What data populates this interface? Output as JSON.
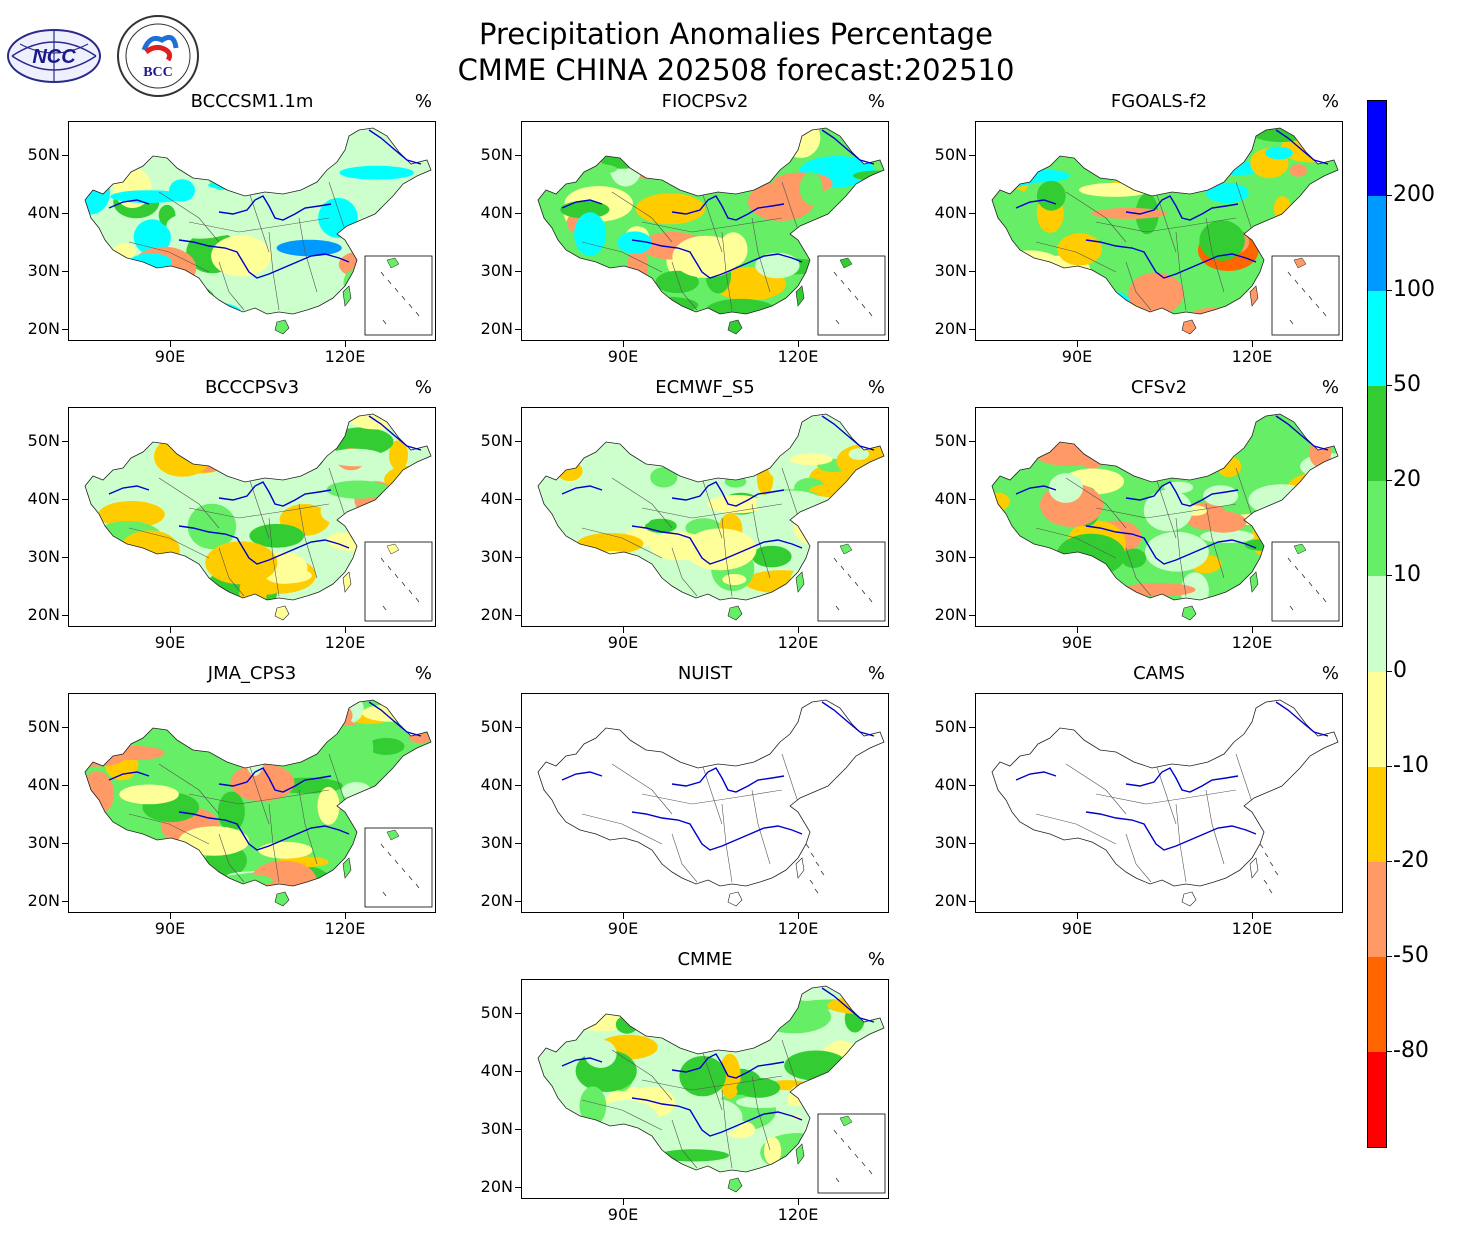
{
  "header": {
    "title_line1": "Precipitation Anomalies Percentage",
    "title_line2": "CMME CHINA 202508 forecast:202510",
    "logo_left_text": "NCC",
    "logo_right_text": "BCC"
  },
  "axes": {
    "lat_labels": [
      "50N",
      "40N",
      "30N",
      "20N"
    ],
    "lon_labels": [
      "90E",
      "120E"
    ],
    "unit": "%"
  },
  "panels": [
    {
      "name": "BCCCSM1.1m",
      "palette": [
        "#66ee66",
        "#33cc33",
        "#ccffcc",
        "#ffff99",
        "#00ffff",
        "#0099ff",
        "#ff9966"
      ],
      "base": "#ccffcc"
    },
    {
      "name": "FIOCPSv2",
      "palette": [
        "#33cc33",
        "#66ee66",
        "#ccffcc",
        "#ff9966",
        "#ffcc00",
        "#00ffff",
        "#ffff99"
      ],
      "base": "#66ee66"
    },
    {
      "name": "FGOALS-f2",
      "palette": [
        "#ff9966",
        "#ff6600",
        "#66ee66",
        "#33cc33",
        "#ffcc00",
        "#00ffff",
        "#ffff99"
      ],
      "base": "#66ee66"
    },
    {
      "name": "BCCCPSv3",
      "palette": [
        "#ffff99",
        "#ffcc00",
        "#ff9966",
        "#66ee66",
        "#ccffcc",
        "#33cc33"
      ],
      "base": "#ccffcc"
    },
    {
      "name": "ECMWF_S5",
      "palette": [
        "#66ee66",
        "#33cc33",
        "#ccffcc",
        "#ffff99",
        "#ffcc00"
      ],
      "base": "#ccffcc"
    },
    {
      "name": "CFSv2",
      "palette": [
        "#66ee66",
        "#33cc33",
        "#ccffcc",
        "#ff9966",
        "#ffcc00",
        "#ffff99"
      ],
      "base": "#66ee66"
    },
    {
      "name": "JMA_CPS3",
      "palette": [
        "#66ee66",
        "#33cc33",
        "#ccffcc",
        "#ffcc00",
        "#ff9966",
        "#ffff99"
      ],
      "base": "#66ee66"
    },
    {
      "name": "NUIST",
      "palette": [],
      "base": "#ffffff"
    },
    {
      "name": "CAMS",
      "palette": [],
      "base": "#ffffff"
    },
    {
      "name": "CMME",
      "palette": [
        "#66ee66",
        "#ccffcc",
        "#33cc33",
        "#ffff99",
        "#ffcc00"
      ],
      "base": "#ccffcc"
    }
  ],
  "colorbar": {
    "labels": [
      "200",
      "100",
      "50",
      "20",
      "10",
      "0",
      "-10",
      "-20",
      "-50",
      "-80"
    ],
    "colors": [
      "#0000ff",
      "#0099ff",
      "#00ffff",
      "#33cc33",
      "#66ee66",
      "#ccffcc",
      "#ffff99",
      "#ffcc00",
      "#ff9966",
      "#ff6600",
      "#ff0000"
    ]
  }
}
